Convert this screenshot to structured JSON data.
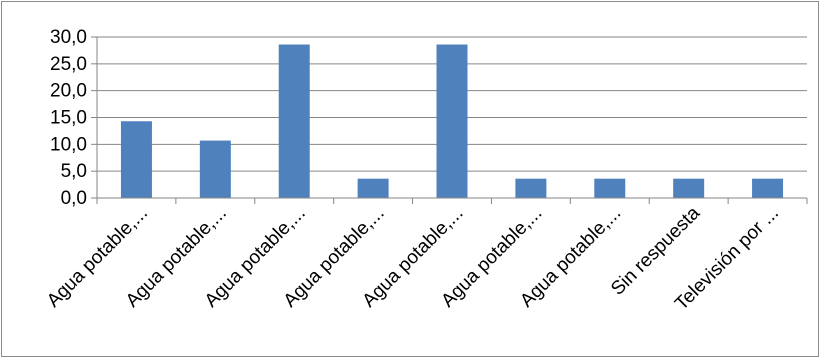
{
  "chart_data": {
    "type": "bar",
    "title": "",
    "xlabel": "",
    "ylabel": "",
    "categories": [
      "Agua potable,...",
      "Agua potable,...",
      "Agua potable,...",
      "Agua potable,...",
      "Agua potable,...",
      "Agua potable,...",
      "Agua potable,...",
      "Sin respuesta",
      "Televisión por ..."
    ],
    "values": [
      14.3,
      10.7,
      28.6,
      3.6,
      28.6,
      3.6,
      3.6,
      3.6,
      3.6
    ],
    "ylim": [
      0,
      30
    ],
    "yticks": [
      "0,0",
      "5,0",
      "10,0",
      "15,0",
      "20,0",
      "25,0",
      "30,0"
    ],
    "grid": true,
    "legend": "none",
    "bar_color": "#4f81bd",
    "grid_color": "#868686"
  }
}
